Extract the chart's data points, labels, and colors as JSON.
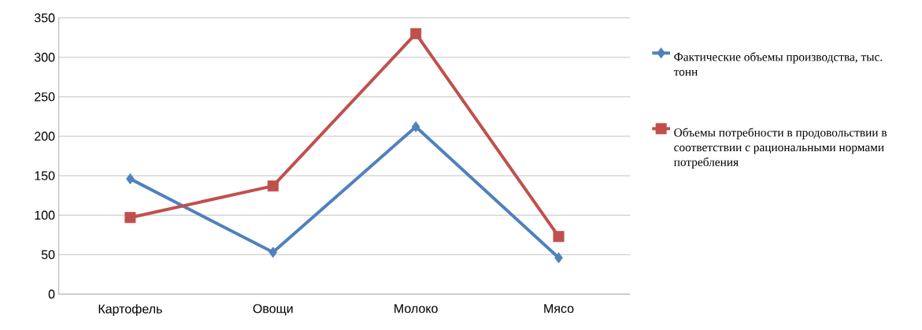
{
  "chart_data": {
    "type": "line",
    "categories": [
      "Картофель",
      "Овощи",
      "Молоко",
      "Мясо"
    ],
    "ylim": [
      0,
      350
    ],
    "yticks": [
      0,
      50,
      100,
      150,
      200,
      250,
      300,
      350
    ],
    "grid": "y",
    "legend": "right",
    "series": [
      {
        "name": "Фактические объемы производства, тыс. тонн",
        "color": "#4f81bd",
        "marker": "diamond",
        "values": [
          146,
          53,
          212,
          46
        ]
      },
      {
        "name": "Объемы потребности в продовольствии в соответствии с рациональными нормами потребления",
        "color": "#c0504d",
        "marker": "square",
        "values": [
          97,
          137,
          330,
          73
        ]
      }
    ]
  }
}
